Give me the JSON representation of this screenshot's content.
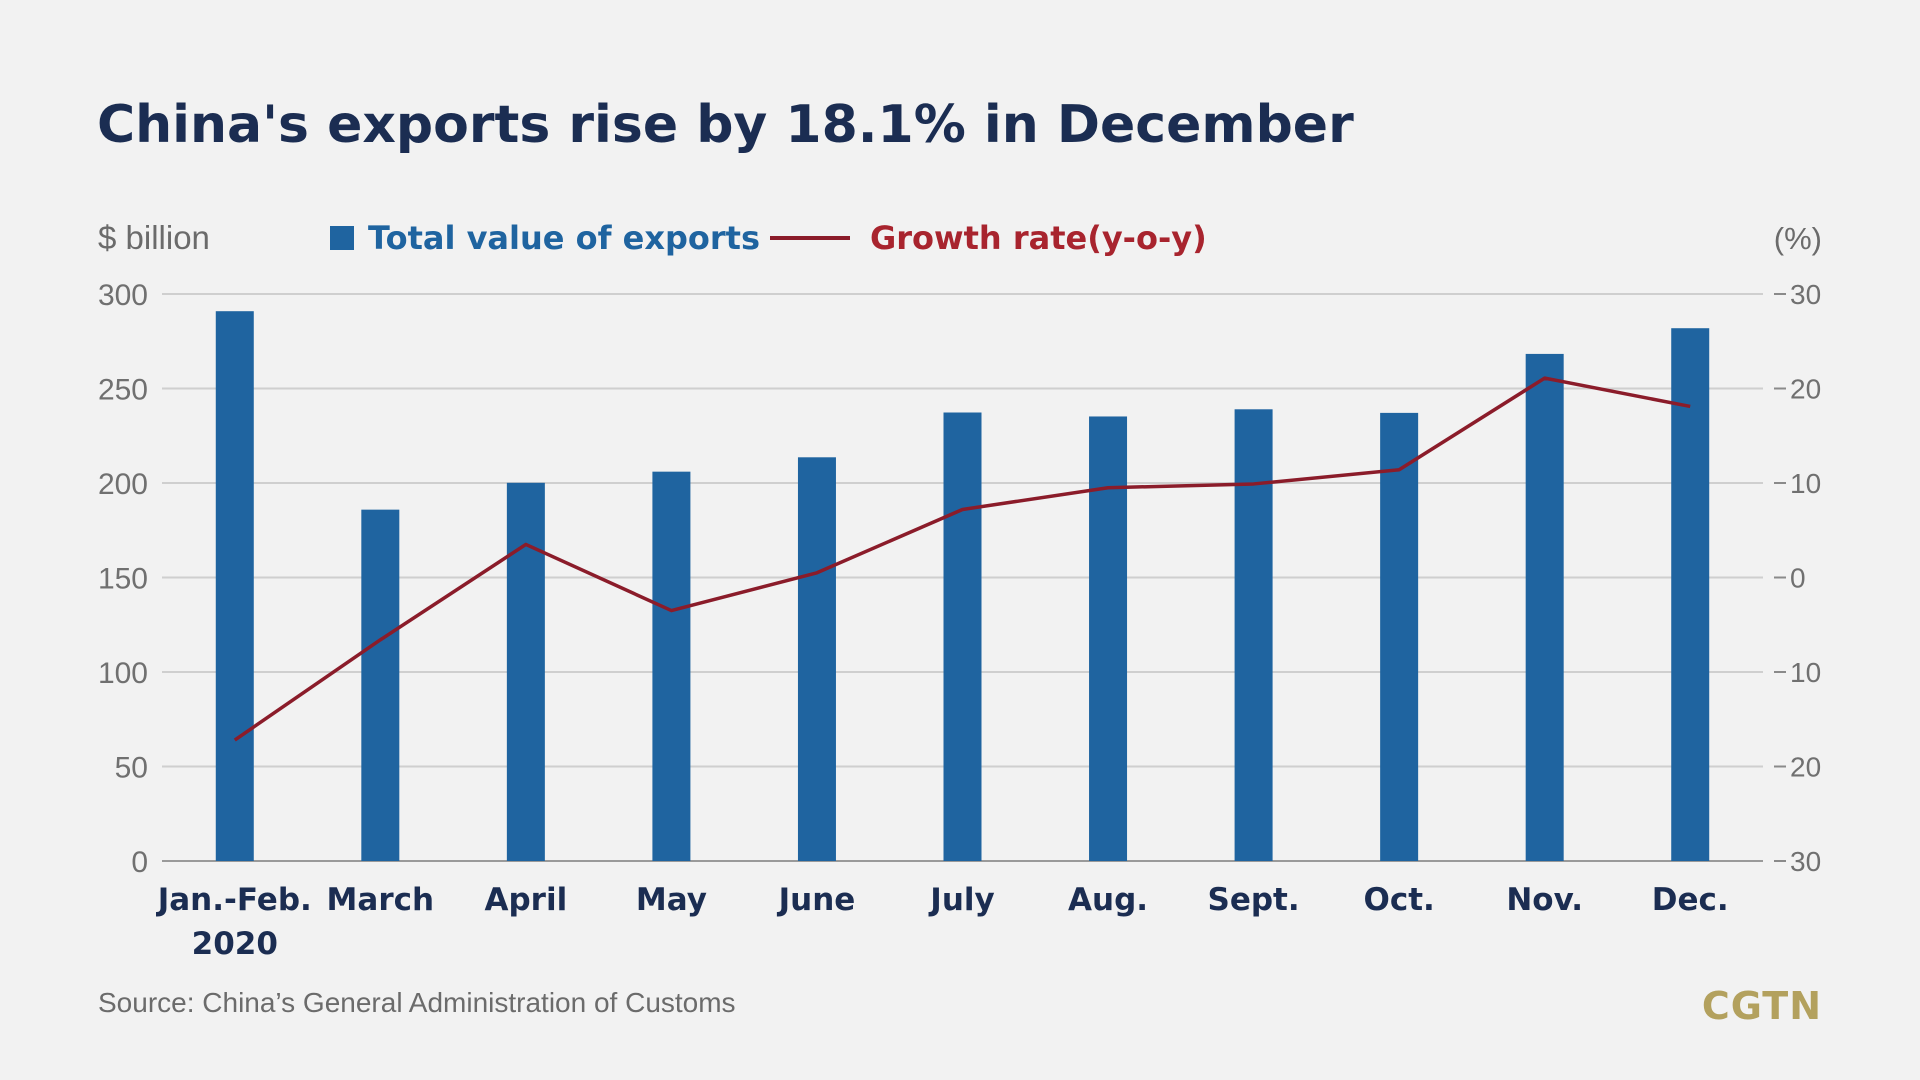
{
  "chart_data": {
    "type": "bar",
    "title": "China's exports rise by 18.1% in December",
    "ylabel": "$ billion",
    "y2label": "(%)",
    "categories": [
      "Jan.-Feb.\n2020",
      "March",
      "April",
      "May",
      "June",
      "July",
      "Aug.",
      "Sept.",
      "Oct.",
      "Nov.",
      "Dec."
    ],
    "series": [
      {
        "name": "Total value of exports",
        "kind": "bar",
        "axis": "left",
        "color": "#1f64a0",
        "values": [
          290.9,
          185.9,
          200.1,
          206.0,
          213.6,
          237.3,
          235.2,
          239.0,
          237.1,
          268.3,
          281.9
        ]
      },
      {
        "name": "Growth rate(y-o-y)",
        "kind": "line",
        "axis": "right",
        "color": "#8b1c2a",
        "values": [
          -17.2,
          -6.6,
          3.5,
          -3.5,
          0.5,
          7.2,
          9.5,
          9.9,
          11.4,
          21.1,
          18.1
        ]
      }
    ],
    "ylim": [
      0,
      300
    ],
    "yticks": [
      "0",
      "50",
      "100",
      "150",
      "200",
      "250",
      "300"
    ],
    "y2lim": [
      -30,
      30
    ],
    "y2ticks": [
      "-30",
      "-20",
      "-10",
      "0",
      "10",
      "20",
      "30"
    ],
    "grid": true,
    "legend_position": "top"
  },
  "source": "Source: China’s General Administration of Customs",
  "logo": "CGTN"
}
